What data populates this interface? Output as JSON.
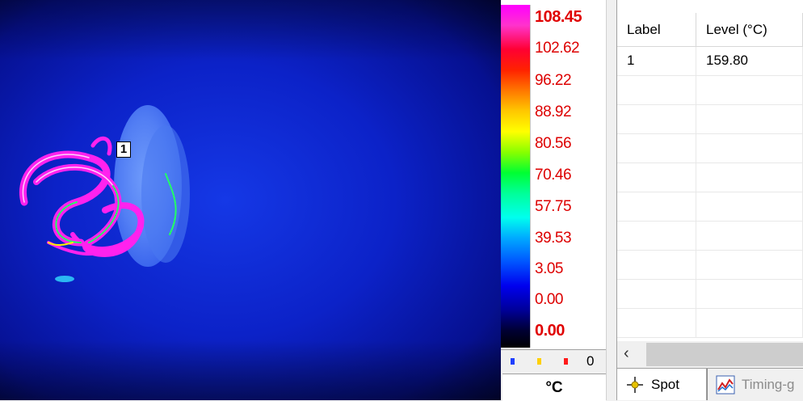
{
  "thermal": {
    "spot_marker_label": "1"
  },
  "scale": {
    "labels": [
      "108.45",
      "102.62",
      "96.22",
      "88.92",
      "80.56",
      "70.46",
      "57.75",
      "39.53",
      "3.05",
      "0.00",
      "0.00"
    ],
    "alarm_count": "0",
    "unit": "°C",
    "swatch_colors": [
      "#1f3fff",
      "#ffd000",
      "#ff1a1a"
    ]
  },
  "table": {
    "columns": [
      "Label",
      "Level (°C)"
    ],
    "rows": [
      {
        "label": "1",
        "level": "159.80"
      }
    ]
  },
  "tabs": {
    "spot": "Spot",
    "timing": "Timing-g"
  },
  "icons": {
    "scroll_left": "chevron-left-icon",
    "spot": "crosshair-icon",
    "timing": "chart-icon"
  }
}
